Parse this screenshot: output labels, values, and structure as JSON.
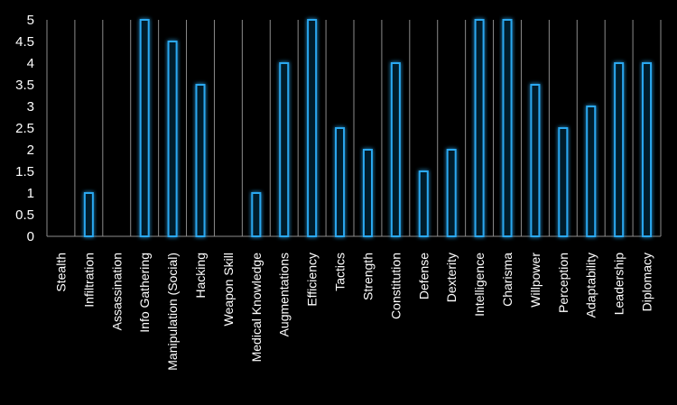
{
  "chart_data": {
    "type": "bar",
    "categories": [
      "Stealth",
      "Infiltration",
      "Assassination",
      "Info Gathering",
      "Manipulation (Social)",
      "Hacking",
      "Weapon Skill",
      "Medical Knowledge",
      "Augmentations",
      "Efficiency",
      "Tactics",
      "Strength",
      "Constitution",
      "Defense",
      "Dexterity",
      "Intelligence",
      "Charisma",
      "Willpower",
      "Perception",
      "Adaptability",
      "Leadership",
      "Diplomacy"
    ],
    "values": [
      0,
      1,
      0,
      5,
      4.5,
      3.5,
      0,
      1,
      4,
      5,
      2.5,
      2,
      4,
      1.5,
      2,
      5,
      5,
      3.5,
      2.5,
      3,
      4,
      4
    ],
    "ylim": [
      0,
      5
    ],
    "yticks": [
      "0",
      "0.5",
      "1",
      "1.5",
      "2",
      "2.5",
      "3",
      "3.5",
      "4",
      "4.5",
      "5"
    ],
    "grid": "vertical",
    "legend": "none",
    "colors": {
      "background": "#000000",
      "bar_stroke": "#29a8f0",
      "bar_glow": "#1e6fb0",
      "grid": "#8c8c8c",
      "text": "#ffffff"
    }
  }
}
